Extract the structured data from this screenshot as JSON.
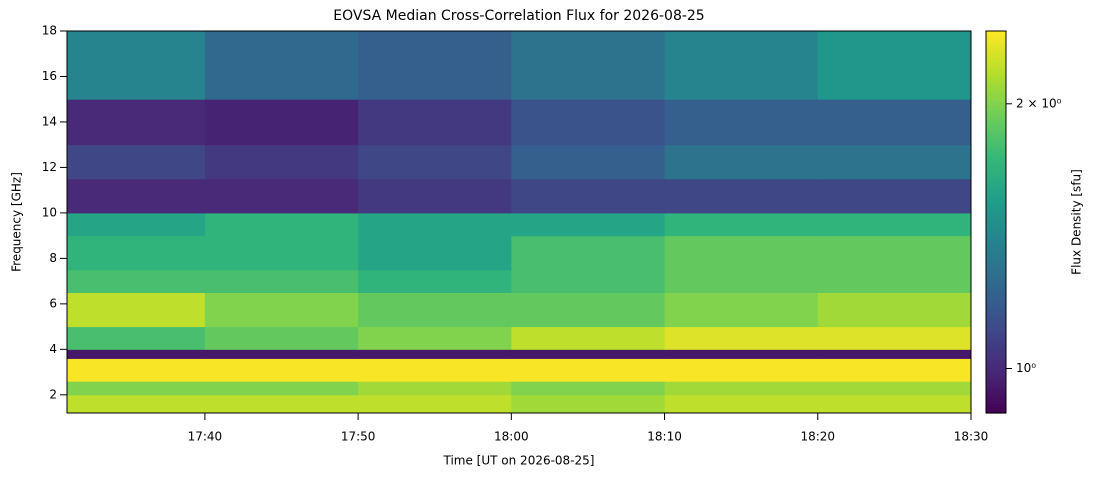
{
  "chart_data": {
    "type": "heatmap",
    "title": "EOVSA Median Cross-Correlation Flux for 2026-08-25",
    "x_label": "Time [UT on 2026-08-25]",
    "y_label": "Frequency [GHz]",
    "colorbar_label": "Flux Density [sfu]",
    "colormap": "viridis",
    "color_scale": "log",
    "x_edges": [
      1051,
      1060,
      1070,
      1080,
      1090,
      1100,
      1110
    ],
    "y_edges": [
      1.2,
      2,
      2.6,
      3.6,
      4,
      5,
      6.5,
      7.5,
      9,
      10,
      11.5,
      13,
      15,
      18
    ],
    "z": [
      [
        2.2,
        2.2,
        2.2,
        2.1,
        2.2,
        2.2
      ],
      [
        2.0,
        2.0,
        2.1,
        2.0,
        2.1,
        2.1
      ],
      [
        2.4,
        2.4,
        2.4,
        2.4,
        2.4,
        2.4
      ],
      [
        0.95,
        0.95,
        0.95,
        0.95,
        0.95,
        0.95
      ],
      [
        1.8,
        1.9,
        2.0,
        2.2,
        2.3,
        2.3
      ],
      [
        2.2,
        2.0,
        1.9,
        1.9,
        2.0,
        2.1
      ],
      [
        1.8,
        1.8,
        1.7,
        1.8,
        1.9,
        1.9
      ],
      [
        1.7,
        1.7,
        1.6,
        1.8,
        1.9,
        1.9
      ],
      [
        1.6,
        1.7,
        1.6,
        1.6,
        1.7,
        1.7
      ],
      [
        1.0,
        1.0,
        1.05,
        1.1,
        1.1,
        1.1
      ],
      [
        1.1,
        1.05,
        1.1,
        1.2,
        1.3,
        1.3
      ],
      [
        1.0,
        0.98,
        1.05,
        1.15,
        1.2,
        1.2
      ],
      [
        1.4,
        1.25,
        1.2,
        1.3,
        1.4,
        1.5
      ]
    ],
    "xlim": [
      1051,
      1110
    ],
    "ylim": [
      1.2,
      18
    ],
    "clim": [
      0.89,
      2.42
    ],
    "xticks": [
      {
        "value": 1060,
        "label": "17:40"
      },
      {
        "value": 1070,
        "label": "17:50"
      },
      {
        "value": 1080,
        "label": "18:00"
      },
      {
        "value": 1090,
        "label": "18:10"
      },
      {
        "value": 1100,
        "label": "18:20"
      },
      {
        "value": 1110,
        "label": "18:30"
      }
    ],
    "yticks": [
      2,
      4,
      6,
      8,
      10,
      12,
      14,
      16,
      18
    ],
    "cticks": [
      {
        "value": 1,
        "label": "10⁰"
      },
      {
        "value": 2,
        "label": "2 × 10⁰"
      }
    ]
  }
}
